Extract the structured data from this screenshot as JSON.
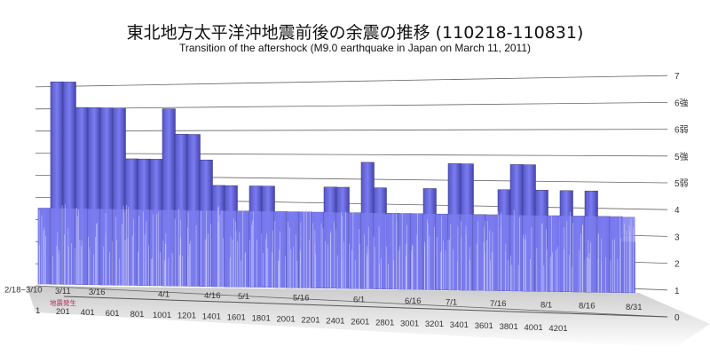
{
  "chart_data": {
    "type": "bar",
    "title": "東北地方太平洋沖地震前後の余震の推移 (110218-110831)",
    "subtitle": "Transition of the aftershock (M9.0 earthquake in Japan on March 11, 2011)",
    "y_tick_labels": [
      "0",
      "1",
      "2",
      "3",
      "4",
      "5弱",
      "5強",
      "6弱",
      "6強",
      "7"
    ],
    "ylim": [
      "0",
      "7"
    ],
    "x_tick_labels": [
      "1",
      "201",
      "401",
      "601",
      "801",
      "1001",
      "1201",
      "1401",
      "1601",
      "1801",
      "2001",
      "2201",
      "2401",
      "2601",
      "2801",
      "3001",
      "3201",
      "3401",
      "3601",
      "3801",
      "4001",
      "4201"
    ],
    "date_labels": [
      "2/18~3/10",
      "3/11",
      "3/16",
      "4/1",
      "4/16",
      "5/1",
      "5/16",
      "6/1",
      "6/16",
      "7/1",
      "7/16",
      "8/1",
      "8/16",
      "8/31"
    ],
    "annotation": "地震発生",
    "grid": true,
    "bar_color": "#7b7cf0",
    "peak_level_index_per_segment": [
      4,
      9,
      9,
      8,
      8,
      8,
      8,
      6,
      6,
      6,
      8,
      7,
      7,
      6,
      5,
      5,
      4,
      5,
      5,
      4,
      4,
      4,
      4,
      5,
      5,
      4,
      6,
      5,
      4,
      4,
      4,
      5,
      4,
      6,
      6,
      4,
      4,
      5,
      6,
      6,
      5,
      4,
      5,
      4,
      5,
      4,
      4,
      3
    ]
  }
}
